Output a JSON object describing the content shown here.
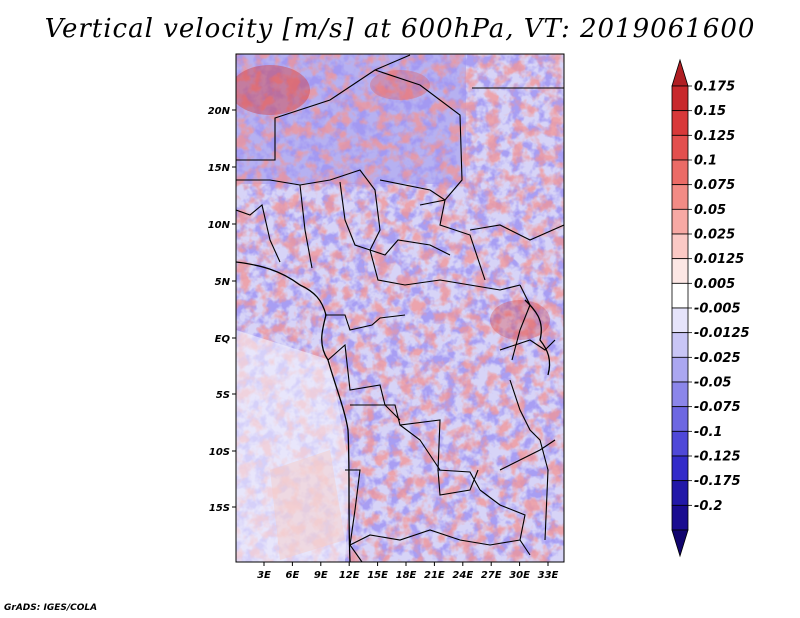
{
  "title": "Vertical velocity [m/s] at 600hPa, VT: 2019061600",
  "footer": "GrADS: IGES/COLA",
  "map": {
    "lat_labels": [
      "20N",
      "15N",
      "10N",
      "5N",
      "EQ",
      "5S",
      "10S",
      "15S"
    ],
    "lon_labels": [
      "3E",
      "6E",
      "9E",
      "12E",
      "15E",
      "18E",
      "21E",
      "24E",
      "27E",
      "30E",
      "33E"
    ]
  },
  "colorbar": {
    "labels": [
      "0.175",
      "0.15",
      "0.125",
      "0.1",
      "0.075",
      "0.05",
      "0.025",
      "0.0125",
      "0.005",
      "-0.005",
      "-0.0125",
      "-0.025",
      "-0.05",
      "-0.075",
      "-0.1",
      "-0.125",
      "-0.175",
      "-0.2"
    ],
    "colors": [
      "#b01e23",
      "#c8282c",
      "#d8393a",
      "#e34f4e",
      "#eb6b66",
      "#f28b85",
      "#f7a9a4",
      "#fbc9c5",
      "#fde7e5",
      "#ffffff",
      "#e6e4fb",
      "#c9c6f6",
      "#aba7f0",
      "#8b86ea",
      "#6d67e2",
      "#4f48d8",
      "#332bc9",
      "#2218a8",
      "#1a0c90",
      "#11046e"
    ]
  }
}
